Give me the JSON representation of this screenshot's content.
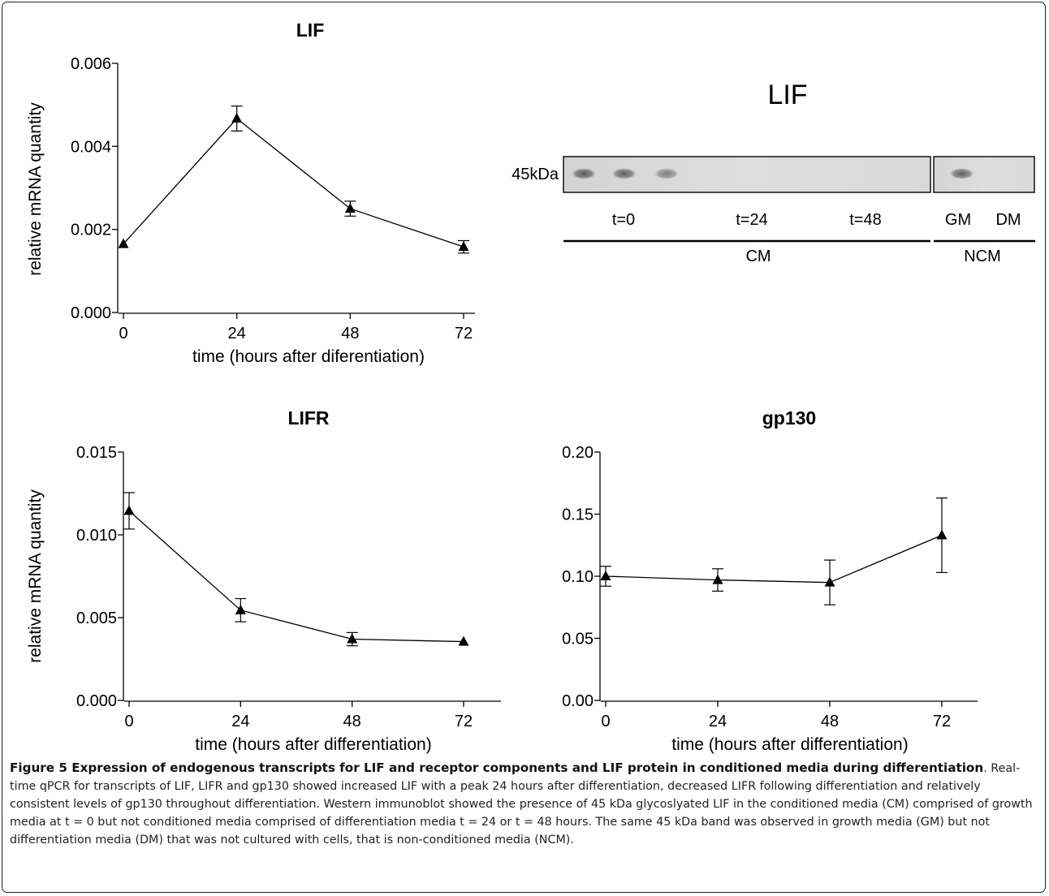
{
  "chart_data": [
    {
      "type": "line",
      "title": "LIF",
      "xlabel": "time (hours after diferentiation)",
      "ylabel": "relative mRNA quantity",
      "x": [
        0,
        24,
        48,
        72
      ],
      "xticks": [
        "0",
        "24",
        "48",
        "72"
      ],
      "yticks": [
        "0.000",
        "0.002",
        "0.004",
        "0.006"
      ],
      "xlim": [
        0,
        72
      ],
      "ylim": [
        0,
        0.006
      ],
      "series": [
        {
          "values": [
            0.00165,
            0.00467,
            0.0025,
            0.00158
          ],
          "err": [
            0.0,
            0.0003,
            0.00018,
            0.00015
          ]
        }
      ]
    },
    {
      "type": "line",
      "title": "LIFR",
      "xlabel": "time (hours after differentiation)",
      "ylabel": "relative mRNA quantity",
      "x": [
        0,
        24,
        48,
        72
      ],
      "xticks": [
        "0",
        "24",
        "48",
        "72"
      ],
      "yticks": [
        "0.000",
        "0.005",
        "0.010",
        "0.015"
      ],
      "xlim": [
        0,
        72
      ],
      "ylim": [
        0,
        0.015
      ],
      "series": [
        {
          "values": [
            0.01145,
            0.00545,
            0.0037,
            0.00355
          ],
          "err": [
            0.0011,
            0.0007,
            0.0004,
            0.0
          ]
        }
      ]
    },
    {
      "type": "line",
      "title": "gp130",
      "xlabel": "time (hours after differentiation)",
      "ylabel": "",
      "x": [
        0,
        24,
        48,
        72
      ],
      "xticks": [
        "0",
        "24",
        "48",
        "72"
      ],
      "yticks": [
        "0.00",
        "0.05",
        "0.10",
        "0.15",
        "0.20"
      ],
      "xlim": [
        0,
        72
      ],
      "ylim": [
        0,
        0.2
      ],
      "series": [
        {
          "values": [
            0.1,
            0.097,
            0.095,
            0.133
          ],
          "err": [
            0.008,
            0.009,
            0.018,
            0.03
          ]
        }
      ]
    }
  ],
  "blot": {
    "title": "LIF",
    "size_label": "45kDa",
    "lane_labels": [
      "t=0",
      "t=24",
      "t=48",
      "GM",
      "DM"
    ],
    "group_labels": [
      "CM",
      "NCM"
    ],
    "band_color": "#5a5a5a",
    "bands": [
      {
        "panel": 0,
        "position": 0.02,
        "intensity": 0.85
      },
      {
        "panel": 0,
        "position": 0.13,
        "intensity": 0.8
      },
      {
        "panel": 0,
        "position": 0.245,
        "intensity": 0.6
      },
      {
        "panel": 1,
        "position": 0.15,
        "intensity": 0.8
      }
    ]
  },
  "caption": {
    "title": "Figure 5 Expression of endogenous transcripts for LIF and receptor components and LIF protein in conditioned media during differentiation",
    "body": ". Real-time qPCR for transcripts of LIF, LIFR and gp130 showed increased LIF with a peak 24 hours after differentiation, decreased LIFR following differentiation and relatively consistent levels of gp130 throughout differentiation. Western immunoblot showed the presence of 45 kDa glycoslyated LIF in the conditioned media (CM) comprised of growth media at t = 0 but not conditioned media comprised of differentiation media t = 24 or t = 48 hours. The same 45 kDa band was observed in growth media (GM) but not differentiation media (DM) that was not cultured with cells, that is non-conditioned media (NCM)."
  }
}
